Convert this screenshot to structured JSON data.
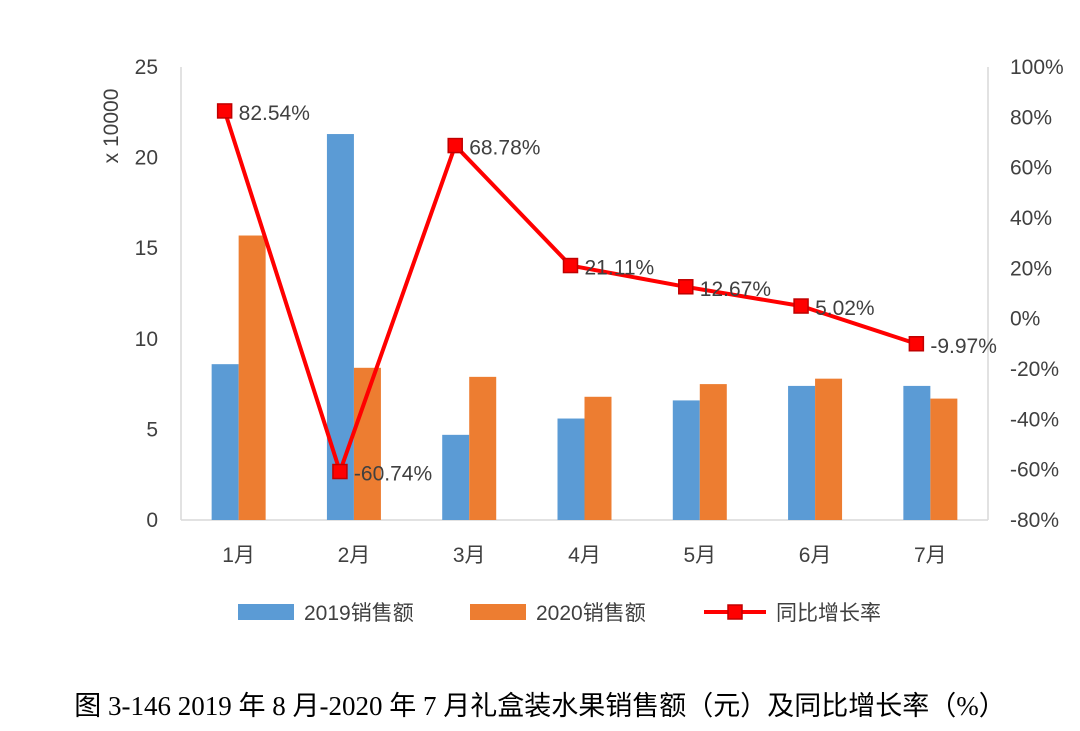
{
  "caption": "图 3-146 2019 年 8 月-2020 年 7 月礼盒装水果销售额（元）及同比增长率（%）",
  "chart_data": {
    "type": "bar",
    "categories": [
      "1月",
      "2月",
      "3月",
      "4月",
      "5月",
      "6月",
      "7月"
    ],
    "y_axis_label": "x 10000",
    "ylim": [
      0,
      25
    ],
    "yticks": [
      0,
      5,
      10,
      15,
      20,
      25
    ],
    "y2lim": [
      -80,
      100
    ],
    "y2ticks": [
      "-80%",
      "-60%",
      "-40%",
      "-20%",
      "0%",
      "20%",
      "40%",
      "60%",
      "80%",
      "100%"
    ],
    "grid": false,
    "legend_position": "bottom",
    "series": [
      {
        "name": "2019销售额",
        "type": "bar",
        "axis": "left",
        "color": "#5B9BD5",
        "values": [
          8.6,
          21.3,
          4.7,
          5.6,
          6.6,
          7.4,
          7.4
        ]
      },
      {
        "name": "2020销售额",
        "type": "bar",
        "axis": "left",
        "color": "#ED7D31",
        "values": [
          15.7,
          8.4,
          7.9,
          6.8,
          7.5,
          7.8,
          6.7
        ]
      },
      {
        "name": "同比增长率",
        "type": "line",
        "axis": "right",
        "color": "#FF0000",
        "values": [
          82.54,
          -60.74,
          68.78,
          21.11,
          12.67,
          5.02,
          -9.97
        ],
        "labels": [
          "82.54%",
          "-60.74%",
          "68.78%",
          "21.11%",
          "12.67%",
          "5.02%",
          "-9.97%"
        ]
      }
    ]
  }
}
